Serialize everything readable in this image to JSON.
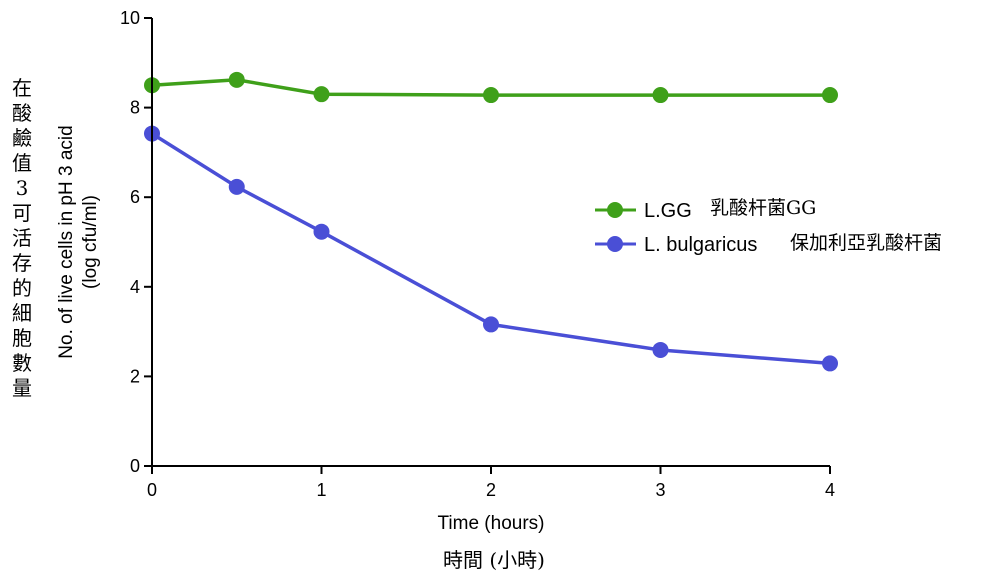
{
  "chart_data": {
    "type": "line",
    "x": [
      0,
      0.5,
      1,
      2,
      3,
      4
    ],
    "xlim": [
      0,
      4
    ],
    "ylim": [
      0,
      10
    ],
    "x_ticks": [
      "0",
      "1",
      "2",
      "3",
      "4"
    ],
    "y_ticks": [
      "0",
      "2",
      "4",
      "6",
      "8",
      "10"
    ],
    "xlabel": "Time (hours)",
    "xlabel_cjk": "時間 (小時)",
    "ylabel_line1": "No. of live cells in pH 3 acid",
    "ylabel_line2": "(log cfu/ml)",
    "ylabel_cjk": "在酸鹼值3可活存的細胞數量",
    "legend_position": "right-middle",
    "grid": false,
    "series": [
      {
        "name": "L.GG",
        "name_cjk": "乳酸杆菌GG",
        "color": "#3fa01a",
        "values": [
          8.5,
          8.62,
          8.3,
          8.28,
          8.28,
          8.28
        ]
      },
      {
        "name": "L. bulgaricus",
        "name_cjk": "保加利亞乳酸杆菌",
        "color": "#4a4fd6",
        "values": [
          7.42,
          6.23,
          5.23,
          3.16,
          2.59,
          2.29
        ]
      }
    ]
  }
}
